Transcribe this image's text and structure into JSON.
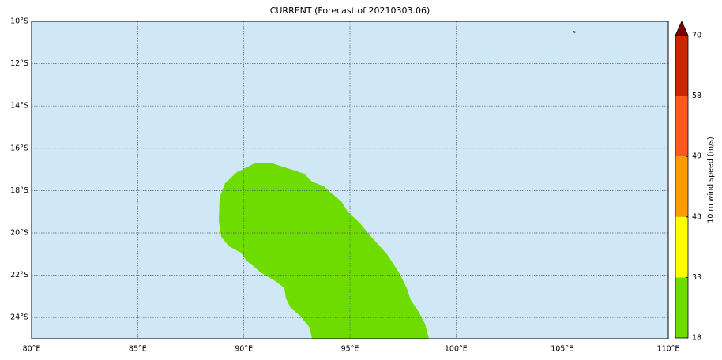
{
  "map": {
    "title": "CURRENT (Forecast of 20210303.06)",
    "xlim": [
      80,
      110
    ],
    "ylim": [
      -25,
      -10
    ],
    "xticks": [
      {
        "value": 80,
        "label": "80°E"
      },
      {
        "value": 85,
        "label": "85°E"
      },
      {
        "value": 90,
        "label": "90°E"
      },
      {
        "value": 95,
        "label": "95°E"
      },
      {
        "value": 100,
        "label": "100°E"
      },
      {
        "value": 105,
        "label": "105°E"
      },
      {
        "value": 110,
        "label": "110°E"
      }
    ],
    "yticks": [
      {
        "value": -10,
        "label": "10°S"
      },
      {
        "value": -12,
        "label": "12°S"
      },
      {
        "value": -14,
        "label": "14°S"
      },
      {
        "value": -16,
        "label": "16°S"
      },
      {
        "value": -18,
        "label": "18°S"
      },
      {
        "value": -20,
        "label": "20°S"
      },
      {
        "value": -22,
        "label": "22°S"
      },
      {
        "value": -24,
        "label": "24°S"
      }
    ],
    "colorbar": {
      "label": "10 m wind speed (m/s)",
      "ticks": [
        18,
        33,
        43,
        49,
        58,
        70
      ],
      "colors": [
        "#6fdc00",
        "#ffff00",
        "#ff9a00",
        "#ff5a1e",
        "#c82800"
      ],
      "extend_color": "#800000"
    }
  }
}
